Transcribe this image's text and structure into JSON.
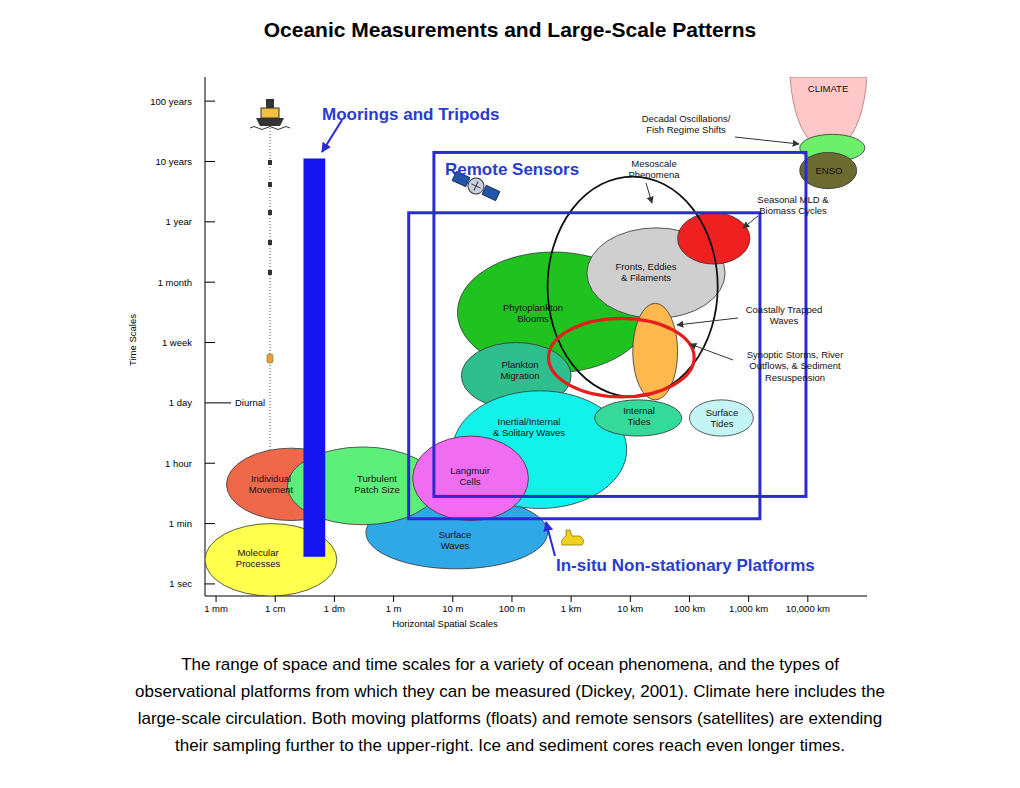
{
  "chart_data": {
    "type": "region",
    "title": "Oceanic Measurements and Large-Scale Patterns",
    "x_label": "Horizontal Spatial Scales",
    "y_label": "Time Scales",
    "log": "x",
    "grid": false,
    "xlim": [
      0.00065,
      100000000
    ],
    "xticks": [
      {
        "value": 0.001,
        "label": "1 mm"
      },
      {
        "value": 0.01,
        "label": "1 cm"
      },
      {
        "value": 0.1,
        "label": "1 dm"
      },
      {
        "value": 1,
        "label": "1 m"
      },
      {
        "value": 10,
        "label": "10 m"
      },
      {
        "value": 100,
        "label": "100 m"
      },
      {
        "value": 1000,
        "label": "1 km"
      },
      {
        "value": 10000,
        "label": "10 km"
      },
      {
        "value": 100000,
        "label": "100 km"
      },
      {
        "value": 1000000,
        "label": "1,000 km"
      },
      {
        "value": 10000000,
        "label": "10,000 km"
      }
    ],
    "ylim": [
      -0.2,
      8.4
    ],
    "yticks": [
      {
        "value": 0,
        "label": "1 sec"
      },
      {
        "value": 1,
        "label": "1 min"
      },
      {
        "value": 2,
        "label": "1 hour"
      },
      {
        "value": 3,
        "label": "1 day"
      },
      {
        "value": 4,
        "label": "1 week"
      },
      {
        "value": 5,
        "label": "1 month"
      },
      {
        "value": 6,
        "label": "1 year"
      },
      {
        "value": 7,
        "label": "10 years"
      },
      {
        "value": 8,
        "label": "100 years"
      }
    ],
    "annotations": [
      {
        "text": "Diurnal",
        "y": 3
      }
    ],
    "series": [
      {
        "name": "Molecular\nProcesses",
        "type": "ellipse",
        "color": "#ffff4d",
        "x": [
          0.00065,
          0.11
        ],
        "y": [
          -0.2,
          1.0
        ]
      },
      {
        "name": "Surface\nWaves",
        "type": "ellipse",
        "color": "#2fa8e8",
        "x": [
          0.34,
          400
        ],
        "y": [
          0.25,
          1.45
        ]
      },
      {
        "name": "Individual\nMovement",
        "type": "ellipse",
        "color": "#f0684a",
        "x": [
          0.0015,
          0.23
        ],
        "y": [
          1.05,
          2.25
        ]
      },
      {
        "name": "Phytoplankton\nBlooms",
        "type": "ellipse",
        "color": "#1fc21f",
        "x": [
          12,
          21000
        ],
        "y": [
          3.5,
          5.5
        ]
      },
      {
        "name": "Plankton\nMigration",
        "type": "ellipse",
        "color": "#2fbf8f",
        "x": [
          14,
          1000
        ],
        "y": [
          2.9,
          4.0
        ]
      },
      {
        "name": "Inertial/Internal\n& Solitary Waves",
        "type": "ellipse",
        "color": "#12f2ea",
        "x": [
          10,
          8700
        ],
        "y": [
          1.25,
          3.2
        ]
      },
      {
        "name": "Turbulent\nPatch Size",
        "type": "ellipse",
        "color": "#5cf07a",
        "x": [
          0.016,
          5.6
        ],
        "y": [
          0.98,
          2.27
        ]
      },
      {
        "name": "Langmuir\nCells",
        "type": "ellipse",
        "color": "#f06cf0",
        "x": [
          2.1,
          190
        ],
        "y": [
          1.05,
          2.45
        ]
      },
      {
        "name": "Internal\nTides",
        "type": "ellipse",
        "color": "#35d99a",
        "x": [
          2500,
          74000
        ],
        "y": [
          2.45,
          3.05
        ]
      },
      {
        "name": "Surface\nTides",
        "type": "ellipse",
        "color": "#c4f5f5",
        "x": [
          100000,
          1200000
        ],
        "y": [
          2.45,
          3.05
        ]
      },
      {
        "name": "Fronts, Eddies\n& Filaments",
        "type": "ellipse",
        "color": "#cfcfcf",
        "x": [
          1850,
          400000
        ],
        "y": [
          4.4,
          5.9
        ]
      },
      {
        "name": "Seasonal MLD &\nBiomass Cycles",
        "type": "ellipse",
        "color": "#ee2020",
        "x": [
          63000,
          1050000
        ],
        "y": [
          5.3,
          6.15
        ]
      },
      {
        "name": "Coastally Trapped\nWaves",
        "type": "ellipse",
        "color": "#ffb84d",
        "x": [
          11000,
          63000
        ],
        "y": [
          3.05,
          4.65
        ]
      },
      {
        "name": "Mesoscale\nPhenomena",
        "type": "ring",
        "color": "#111111",
        "x": [
          400,
          300000
        ],
        "y": [
          3.1,
          6.75
        ]
      },
      {
        "name": "Synoptic Storms, River\nOutflows, & Sediment\nResuspension",
        "type": "ring",
        "color": "#e81c1c",
        "x": [
          415,
          120000
        ],
        "y": [
          3.1,
          4.4
        ]
      },
      {
        "name": "CLIMATE",
        "type": "funnel",
        "color": "#ffc8c8",
        "x": [
          5000000,
          100000000
        ],
        "y": [
          7.3,
          8.4
        ]
      },
      {
        "name": "Decadal Oscillations/\nFish Regime Shifts",
        "type": "ellipse",
        "color": "#6cf06c",
        "x": [
          7300000,
          92000000
        ],
        "y": [
          7.0,
          7.45
        ]
      },
      {
        "name": "ENSO",
        "type": "ellipse",
        "color": "#6b6b30",
        "x": [
          7300000,
          67000000
        ],
        "y": [
          6.55,
          7.15
        ]
      },
      {
        "name": "Moorings and Tripods",
        "type": "bar",
        "color": "#1414f0",
        "x": [
          0.03,
          0.07
        ],
        "y": [
          0.45,
          7.05
        ]
      },
      {
        "name": "Remote Sensors",
        "type": "rect",
        "color": "#2b2bd6",
        "x": [
          4.8,
          9300000
        ],
        "y": [
          1.45,
          7.15
        ]
      },
      {
        "name": "In-situ Non-stationary Platforms",
        "type": "rect",
        "color": "#2b2bd6",
        "x": [
          1.8,
          1550000
        ],
        "y": [
          1.08,
          6.15
        ]
      }
    ],
    "caption": [
      "The range of space and time scales for a variety of ocean phenomena, and the types of",
      "observational platforms from which they can be measured (Dickey, 2001). Climate here includes the",
      "large-scale circulation. Both moving platforms (floats) and remote sensors (satellites) are extending",
      "their sampling further to the upper-right. Ice and sediment cores reach even longer times."
    ]
  }
}
